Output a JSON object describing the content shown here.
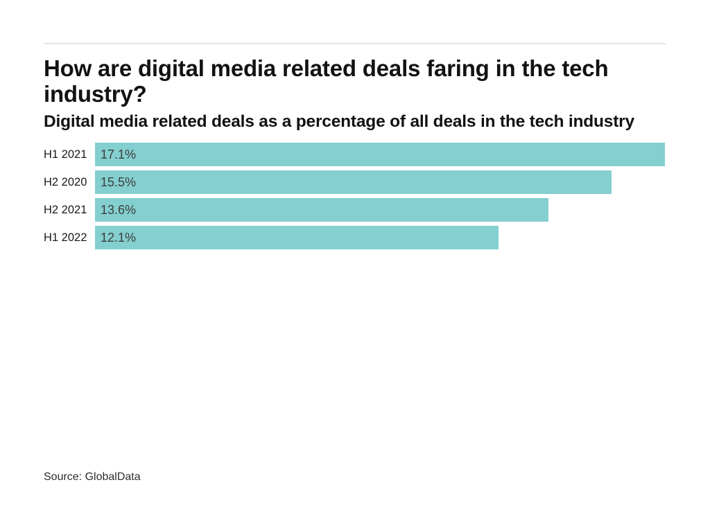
{
  "header": {
    "title_lines": [
      "How are digital media related deals faring in the tech",
      "industry?"
    ],
    "title_full": "How are digital media related deals faring in the tech industry?",
    "subtitle": "Digital media related deals as a percentage of all deals in the tech industry"
  },
  "chart_data": {
    "type": "bar",
    "orientation": "horizontal",
    "title": "How are digital media related deals faring in the tech industry?",
    "subtitle": "Digital media related deals as a percentage of all deals in the tech industry",
    "categories": [
      "H1 2021",
      "H2 2020",
      "H2 2021",
      "H1 2022"
    ],
    "values": [
      17.1,
      15.5,
      13.6,
      12.1
    ],
    "value_labels": [
      "17.1%",
      "15.5%",
      "13.6%",
      "12.1%"
    ],
    "unit": "%",
    "xlim": [
      0,
      17.1
    ],
    "grid": false,
    "legend": false,
    "axis_ticks": false,
    "value_label_position": "inside-start",
    "bar_color": "#84CFD0"
  },
  "footer": {
    "source": "Source: GlobalData"
  },
  "colors": {
    "background": "#ffffff",
    "bar": "#84CFD0",
    "divider": "#e3e3e3",
    "title_text": "#121212",
    "label_text": "#1a1a1a",
    "value_text": "#3d3d3d",
    "source_text": "#2e2e2e"
  }
}
